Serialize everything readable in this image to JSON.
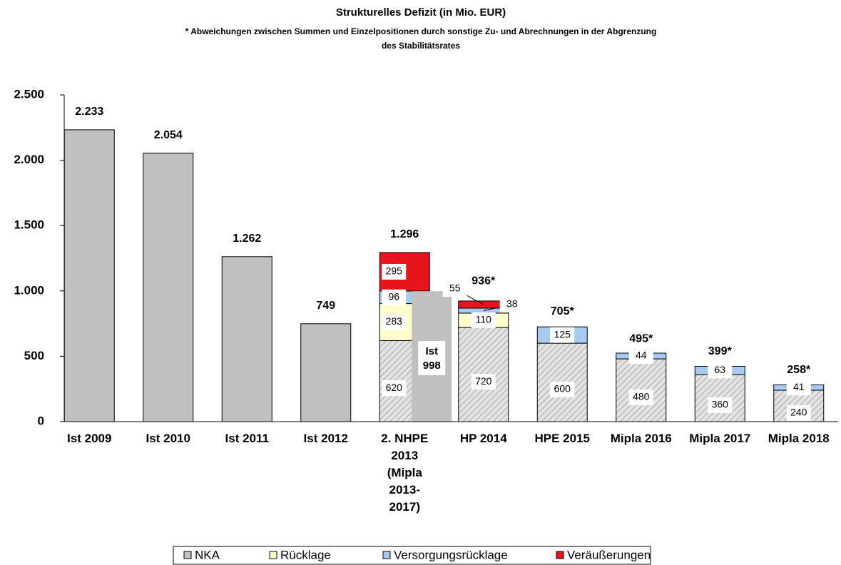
{
  "chart_data": {
    "type": "stacked_bar",
    "title": "Strukturelles Defizit (in Mio. EUR)",
    "subtitle": [
      "* Abweichungen zwischen Summen und Einzelpositionen durch sonstige Zu- und Abrechnungen in der Abgrenzung",
      "des Stabilitätsrates"
    ],
    "categories": [
      "Ist 2009",
      "Ist 2010",
      "Ist 2011",
      "Ist 2012",
      "2. NHPE 2013 (Mipla 2013-2017)",
      "HP 2014",
      "HPE 2015",
      "Mipla 2016",
      "Mipla 2017",
      "Mipla 2018"
    ],
    "series": [
      {
        "name": "NKA",
        "color": "#c0c0c0",
        "values": [
          2233,
          2054,
          1262,
          749,
          620,
          720,
          600,
          480,
          360,
          240
        ]
      },
      {
        "name": "Rücklage",
        "color": "#ffffcc",
        "values": [
          null,
          null,
          null,
          null,
          283,
          110,
          null,
          null,
          null,
          null
        ]
      },
      {
        "name": "Versorgungsrücklage",
        "color": "#a6caf0",
        "values": [
          null,
          null,
          null,
          null,
          96,
          38,
          125,
          44,
          63,
          41
        ]
      },
      {
        "name": "Veräußerungen",
        "color": "#e8141b",
        "values": [
          null,
          null,
          null,
          null,
          295,
          55,
          null,
          null,
          null,
          null
        ]
      }
    ],
    "totals": {
      "values": [
        2233,
        2054,
        1262,
        749,
        1296,
        936,
        705,
        495,
        399,
        258
      ],
      "value_labels": [
        "2.233",
        "2.054",
        "1.262",
        "749",
        "1.296",
        "936*",
        "705*",
        "495*",
        "399*",
        "258*"
      ]
    },
    "overlay": {
      "category": "2. NHPE 2013 (Mipla 2013-2017)",
      "label": "Ist",
      "value": 998,
      "color": "#c0c0c0"
    },
    "ylim": [
      0,
      2500
    ],
    "yticks": [
      0,
      {
        "value": 500,
        "label": "500"
      },
      {
        "value": 1000,
        "label": "1.000"
      },
      {
        "value": 1500,
        "label": "1.500"
      },
      {
        "value": 2000,
        "label": "2.000"
      },
      {
        "value": 2500,
        "label": "2.500"
      }
    ],
    "legend": "bottom"
  }
}
